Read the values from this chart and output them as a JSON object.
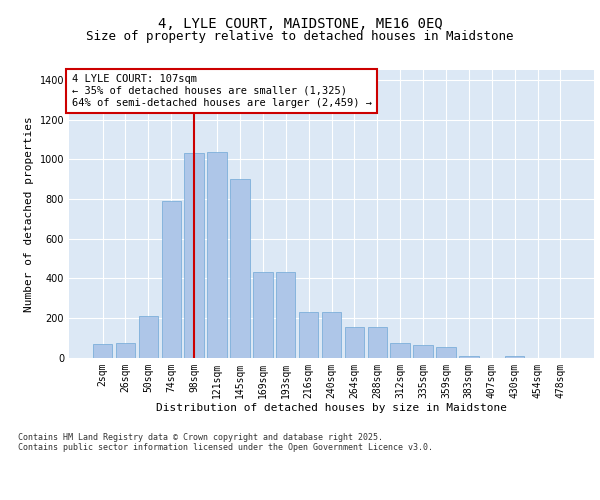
{
  "title1": "4, LYLE COURT, MAIDSTONE, ME16 0EQ",
  "title2": "Size of property relative to detached houses in Maidstone",
  "xlabel": "Distribution of detached houses by size in Maidstone",
  "ylabel": "Number of detached properties",
  "categories": [
    "2sqm",
    "26sqm",
    "50sqm",
    "74sqm",
    "98sqm",
    "121sqm",
    "145sqm",
    "169sqm",
    "193sqm",
    "216sqm",
    "240sqm",
    "264sqm",
    "288sqm",
    "312sqm",
    "335sqm",
    "359sqm",
    "383sqm",
    "407sqm",
    "430sqm",
    "454sqm",
    "478sqm"
  ],
  "values": [
    70,
    75,
    210,
    790,
    1030,
    1035,
    900,
    430,
    430,
    230,
    230,
    155,
    155,
    75,
    65,
    55,
    10,
    0,
    10,
    0,
    0
  ],
  "bar_color": "#aec6e8",
  "bar_edge_color": "#6fa8d6",
  "vline_x_index": 4,
  "vline_color": "#cc0000",
  "annotation_text": "4 LYLE COURT: 107sqm\n← 35% of detached houses are smaller (1,325)\n64% of semi-detached houses are larger (2,459) →",
  "annotation_box_color": "#ffffff",
  "annotation_box_edge": "#cc0000",
  "ylim": [
    0,
    1450
  ],
  "yticks": [
    0,
    200,
    400,
    600,
    800,
    1000,
    1200,
    1400
  ],
  "bg_color": "#dce8f5",
  "footer_text": "Contains HM Land Registry data © Crown copyright and database right 2025.\nContains public sector information licensed under the Open Government Licence v3.0.",
  "title1_fontsize": 10,
  "title2_fontsize": 9,
  "tick_fontsize": 7,
  "label_fontsize": 8,
  "annotation_fontsize": 7.5
}
